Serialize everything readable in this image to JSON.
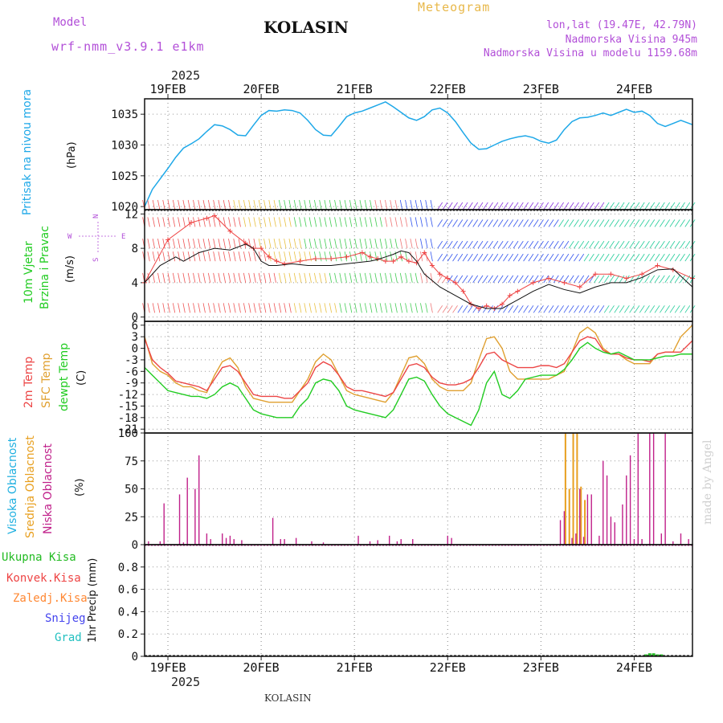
{
  "header": {
    "model_label": "Model",
    "model_name": "wrf-nmm_v3.9.1 e1km",
    "station": "KOLASIN",
    "meteogram": "Meteogram",
    "lonlat": "lon,lat (19.47E, 42.79N)",
    "elevation": "Nadmorska Visina 945m",
    "model_elevation": "Nadmorska Visina u modelu 1159.68m"
  },
  "time_axis": {
    "year": "2025",
    "days": [
      "19FEB",
      "20FEB",
      "21FEB",
      "22FEB",
      "23FEB",
      "24FEB"
    ]
  },
  "footer": {
    "station": "KOLASIN",
    "made_by": "made by Angel"
  },
  "panels": {
    "pressure": {
      "title": "Pritisak na nivou mora",
      "unit": "(hPa)"
    },
    "wind": {
      "title1": "10m Vjetar",
      "title2": "Brzina i Pravac",
      "unit": "(m/s)",
      "compass": {
        "n": "N",
        "s": "S",
        "w": "W",
        "e": "E"
      }
    },
    "temp": {
      "t2m": "2m Temp",
      "sfc": "SFC Temp",
      "dew": "dewpt Temp",
      "unit": "(C)"
    },
    "cloud": {
      "high": "Visoka Oblacnost",
      "mid": "Srednja Oblacnost",
      "low": "Niska Oblacnost",
      "unit": "(%)"
    },
    "precip": {
      "title": "1hr Precip (mm)",
      "legend": [
        "Ukupna Kisa",
        "Konvek.Kisa",
        "Zaledj.Kisa",
        "Snijeg",
        "Grad"
      ]
    }
  },
  "colors": {
    "pressure": "#1ea8e8",
    "t2m": "#ec4646",
    "sfc": "#e0a030",
    "dew": "#22cc22",
    "cloud_low": "#c0208a",
    "cloud_mid": "#e8a020",
    "cloud_high": "#20b0e0",
    "total_rain": "#22bb22",
    "conv_rain": "#ee4444",
    "frz_rain": "#ff8833",
    "snow": "#4444ee",
    "hail": "#22c0c0",
    "gust": "#ee4444",
    "wind_mean": "#111111"
  },
  "chart_data": [
    {
      "type": "line",
      "title": "Pritisak na nivou mora",
      "ylabel": "(hPa)",
      "ylim": [
        1019.5,
        1037.5
      ],
      "yticks": [
        1020,
        1025,
        1030,
        1035
      ],
      "xlim": [
        0,
        141
      ],
      "x_unit": "hours since 18FEB 12UTC",
      "series": [
        {
          "name": "pressure",
          "x": [
            0,
            2,
            4,
            6,
            8,
            10,
            12,
            14,
            16,
            18,
            20,
            22,
            24,
            26,
            28,
            30,
            32,
            34,
            36,
            38,
            40,
            42,
            44,
            46,
            48,
            50,
            52,
            54,
            56,
            58,
            60,
            62,
            64,
            66,
            68,
            70,
            72,
            74,
            76,
            78,
            80,
            82,
            84,
            86,
            88,
            90,
            92,
            94,
            96,
            98,
            100,
            102,
            104,
            106,
            108,
            110,
            112,
            114,
            116,
            118,
            120,
            122,
            124,
            126,
            128,
            130,
            132,
            134,
            136,
            138,
            141
          ],
          "values": [
            1020,
            1022.8,
            1024.5,
            1026.2,
            1028,
            1029.5,
            1030.2,
            1031,
            1032.2,
            1033.3,
            1033.1,
            1032.5,
            1031.6,
            1031.5,
            1033.2,
            1034.8,
            1035.6,
            1035.5,
            1035.7,
            1035.6,
            1035.2,
            1034,
            1032.5,
            1031.6,
            1031.5,
            1033,
            1034.6,
            1035.2,
            1035.5,
            1036,
            1036.5,
            1037,
            1036.2,
            1035.3,
            1034.4,
            1034,
            1034.6,
            1035.7,
            1036,
            1035.2,
            1033.8,
            1032,
            1030.3,
            1029.3,
            1029.4,
            1030,
            1030.6,
            1031,
            1031.3,
            1031.5,
            1031.2,
            1030.6,
            1030.3,
            1030.8,
            1032.5,
            1033.8,
            1034.4,
            1034.5,
            1034.8,
            1035.2,
            1034.8,
            1035.3,
            1035.8,
            1035.3,
            1035.5,
            1034.8,
            1033.5,
            1033,
            1033.5,
            1034,
            1033.3
          ]
        }
      ]
    },
    {
      "type": "line",
      "title": "10m Vjetar Brzina i Pravac",
      "ylabel": "(m/s)",
      "ylim": [
        -0.5,
        12.5
      ],
      "yticks": [
        0,
        4,
        8,
        12
      ],
      "xlim": [
        0,
        141
      ],
      "series": [
        {
          "name": "gust",
          "x": [
            0,
            6,
            12,
            16,
            18,
            22,
            26,
            28,
            30,
            32,
            34,
            36,
            40,
            44,
            48,
            52,
            56,
            58,
            60,
            62,
            64,
            66,
            68,
            70,
            72,
            74,
            76,
            78,
            80,
            82,
            84,
            86,
            88,
            90,
            92,
            94,
            96,
            100,
            104,
            108,
            112,
            116,
            120,
            124,
            128,
            132,
            136,
            141
          ],
          "values": [
            4,
            9,
            11,
            11.5,
            11.8,
            10,
            8.6,
            8,
            8,
            7,
            6.5,
            6.2,
            6.5,
            6.8,
            6.8,
            7,
            7.5,
            7,
            6.8,
            6.5,
            6.5,
            7,
            6.5,
            6.3,
            7.5,
            6,
            5,
            4.5,
            4,
            3,
            1.5,
            1,
            1.3,
            1,
            1.5,
            2.5,
            3,
            4,
            4.5,
            4,
            3.5,
            5,
            5,
            4.5,
            5,
            6,
            5.5,
            4.5
          ]
        },
        {
          "name": "wind_mean",
          "x": [
            0,
            4,
            8,
            10,
            14,
            18,
            22,
            26,
            28,
            30,
            32,
            34,
            38,
            42,
            48,
            54,
            58,
            60,
            62,
            64,
            66,
            68,
            70,
            72,
            76,
            80,
            84,
            88,
            92,
            96,
            100,
            104,
            108,
            112,
            116,
            120,
            124,
            128,
            132,
            136,
            141
          ],
          "values": [
            4,
            6,
            7,
            6.5,
            7.5,
            8,
            7.8,
            8.5,
            8,
            6.5,
            6,
            6,
            6.2,
            6,
            6,
            6.3,
            6.5,
            6.7,
            7,
            7.3,
            7.7,
            7.5,
            6.5,
            5,
            3.5,
            2.5,
            1.5,
            1,
            1,
            2,
            3,
            3.8,
            3.2,
            2.8,
            3.5,
            4,
            4,
            4.6,
            5.5,
            5.6,
            3.5
          ]
        }
      ]
    },
    {
      "type": "line",
      "title": "2m Temp / SFC Temp / dewpt Temp",
      "ylabel": "(C)",
      "ylim": [
        -22,
        7
      ],
      "yticks": [
        -21,
        -18,
        -15,
        -12,
        -9,
        -6,
        -3,
        0,
        3,
        6
      ],
      "xlim": [
        0,
        141
      ],
      "series": [
        {
          "name": "2m Temp",
          "x": [
            0,
            2,
            4,
            6,
            8,
            10,
            12,
            14,
            16,
            18,
            20,
            22,
            24,
            26,
            28,
            30,
            32,
            34,
            36,
            38,
            40,
            42,
            44,
            46,
            48,
            50,
            52,
            54,
            56,
            58,
            60,
            62,
            64,
            66,
            68,
            70,
            72,
            74,
            76,
            78,
            80,
            82,
            84,
            86,
            88,
            90,
            92,
            94,
            96,
            98,
            100,
            102,
            104,
            106,
            108,
            110,
            112,
            114,
            116,
            118,
            120,
            122,
            124,
            126,
            128,
            130,
            132,
            134,
            136,
            138,
            141
          ],
          "values": [
            2.5,
            -3,
            -5,
            -6.5,
            -8.5,
            -9,
            -9.5,
            -10,
            -11,
            -8,
            -5,
            -4.5,
            -6,
            -9,
            -12,
            -12.5,
            -12.5,
            -12.5,
            -13,
            -13,
            -11,
            -9,
            -5,
            -3.5,
            -4.5,
            -7,
            -10,
            -11,
            -11,
            -11.5,
            -12,
            -12.5,
            -11.5,
            -8,
            -4.5,
            -4,
            -5,
            -7.5,
            -9,
            -9.5,
            -9.5,
            -9,
            -8,
            -5,
            -1.5,
            -1,
            -3,
            -4,
            -5,
            -5,
            -5,
            -4.5,
            -4.5,
            -5,
            -4,
            -1,
            2,
            3,
            2.5,
            -0.5,
            -1.5,
            -1.5,
            -2.5,
            -3,
            -3,
            -3.5,
            -1.5,
            -1,
            -1,
            -1,
            2
          ]
        },
        {
          "name": "SFC Temp",
          "x": [
            0,
            2,
            4,
            6,
            8,
            10,
            12,
            14,
            16,
            18,
            20,
            22,
            24,
            26,
            28,
            30,
            32,
            34,
            36,
            38,
            40,
            42,
            44,
            46,
            48,
            50,
            52,
            54,
            56,
            58,
            60,
            62,
            64,
            66,
            68,
            70,
            72,
            74,
            76,
            78,
            80,
            82,
            84,
            86,
            88,
            90,
            92,
            94,
            96,
            98,
            100,
            102,
            104,
            106,
            108,
            110,
            112,
            114,
            116,
            118,
            120,
            122,
            124,
            126,
            128,
            130,
            132,
            134,
            136,
            138,
            141
          ],
          "values": [
            3,
            -4,
            -6,
            -7,
            -9,
            -10,
            -10,
            -11,
            -11.5,
            -7,
            -3.5,
            -2.5,
            -5,
            -10,
            -13,
            -13.5,
            -14,
            -14,
            -14,
            -14,
            -11,
            -8,
            -3.5,
            -1.5,
            -3,
            -7,
            -11,
            -12,
            -12.5,
            -13,
            -13.5,
            -14,
            -11.5,
            -7,
            -2.5,
            -2,
            -4,
            -8,
            -10,
            -11,
            -11,
            -11,
            -9,
            -3,
            2.5,
            3,
            0,
            -6,
            -8,
            -8,
            -8,
            -8,
            -8,
            -7,
            -6,
            -1,
            4,
            5.5,
            4,
            0,
            -1.5,
            -1.5,
            -3,
            -4,
            -4,
            -4,
            -1.5,
            -1,
            -1,
            3,
            6
          ]
        },
        {
          "name": "dewpt Temp",
          "x": [
            0,
            2,
            4,
            6,
            8,
            10,
            12,
            14,
            16,
            18,
            20,
            22,
            24,
            26,
            28,
            30,
            32,
            34,
            36,
            38,
            40,
            42,
            44,
            46,
            48,
            50,
            52,
            54,
            56,
            58,
            60,
            62,
            64,
            66,
            68,
            70,
            72,
            74,
            76,
            78,
            80,
            82,
            84,
            86,
            88,
            90,
            92,
            94,
            96,
            98,
            100,
            102,
            104,
            106,
            108,
            110,
            112,
            114,
            116,
            118,
            120,
            122,
            124,
            126,
            128,
            130,
            132,
            134,
            136,
            138,
            141
          ],
          "values": [
            -5,
            -7,
            -9,
            -11,
            -11.5,
            -12,
            -12.5,
            -12.5,
            -13,
            -12,
            -10,
            -9,
            -10,
            -13,
            -16,
            -17,
            -17.5,
            -18,
            -18,
            -18,
            -15,
            -13,
            -9,
            -8,
            -8.5,
            -11,
            -15,
            -16,
            -16.5,
            -17,
            -17.5,
            -18,
            -16,
            -12,
            -8,
            -7.5,
            -8.5,
            -12,
            -15,
            -17,
            -18,
            -19,
            -20,
            -16,
            -9,
            -6,
            -12,
            -13,
            -11,
            -8,
            -7.5,
            -7,
            -7,
            -7,
            -5.5,
            -3,
            0,
            1.5,
            0,
            -1,
            -1.5,
            -1,
            -2,
            -3,
            -3,
            -3,
            -2.5,
            -2,
            -2,
            -1.5,
            -1.5
          ]
        }
      ]
    },
    {
      "type": "bar",
      "title": "Visoka / Srednja / Niska Oblacnost",
      "ylabel": "(%)",
      "ylim": [
        0,
        100
      ],
      "yticks": [
        0,
        25,
        50,
        75,
        100
      ],
      "xlim": [
        0,
        141
      ],
      "series": [
        {
          "name": "Niska Oblacnost",
          "x": [
            1,
            4,
            5,
            9,
            10,
            11,
            13,
            14,
            16,
            17,
            20,
            21,
            22,
            23,
            25,
            33,
            35,
            36,
            39,
            43,
            46,
            55,
            58,
            60,
            63,
            65,
            66,
            69,
            78,
            79,
            107,
            108,
            110,
            111,
            112,
            113,
            114,
            115,
            117,
            118,
            119,
            120,
            121,
            123,
            124,
            125,
            126,
            127,
            128,
            130,
            131,
            133,
            134,
            136,
            138,
            140
          ],
          "values": [
            3,
            3,
            37,
            45,
            2,
            60,
            50,
            80,
            10,
            5,
            10,
            6,
            8,
            5,
            4,
            24,
            5,
            5,
            6,
            3,
            2,
            8,
            3,
            4,
            8,
            3,
            5,
            5,
            8,
            6,
            22,
            30,
            6,
            10,
            50,
            7,
            45,
            45,
            8,
            75,
            62,
            25,
            20,
            36,
            62,
            80,
            5,
            100,
            5,
            100,
            100,
            10,
            100,
            3,
            10,
            5
          ]
        },
        {
          "name": "Srednja Oblacnost",
          "x": [
            108,
            109,
            110,
            111,
            112,
            113
          ],
          "values": [
            100,
            50,
            100,
            100,
            52,
            40
          ]
        },
        {
          "name": "Visoka Oblacnost",
          "x": [],
          "values": []
        }
      ]
    },
    {
      "type": "bar",
      "title": "1hr Precip (mm)",
      "ylabel": "1hr Precip (mm)",
      "ylim": [
        0,
        1.0
      ],
      "yticks": [
        0,
        0.2,
        0.4,
        0.6,
        0.8
      ],
      "xlim": [
        0,
        141
      ],
      "series": [
        {
          "name": "Ukupna Kisa",
          "x": [
            129,
            130,
            131,
            132,
            133
          ],
          "values": [
            0.01,
            0.02,
            0.02,
            0.01,
            0.01
          ]
        },
        {
          "name": "Konvek.Kisa",
          "x": [],
          "values": []
        },
        {
          "name": "Zaledj.Kisa",
          "x": [],
          "values": []
        },
        {
          "name": "Snijeg",
          "x": [],
          "values": []
        },
        {
          "name": "Grad",
          "x": [],
          "values": []
        }
      ]
    }
  ]
}
